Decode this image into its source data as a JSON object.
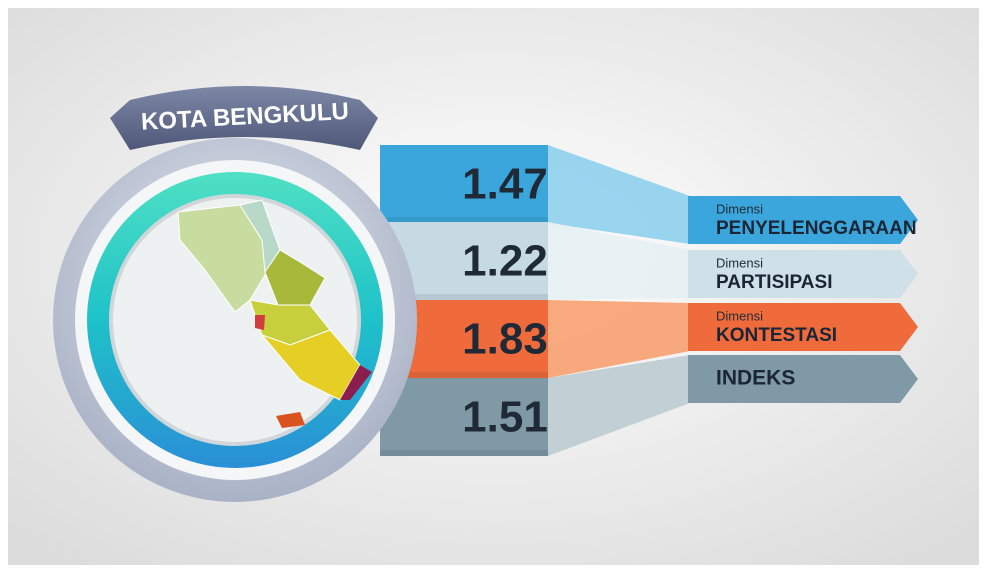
{
  "title": "KOTA BENGKULU",
  "rows": [
    {
      "value": 1.47,
      "prefix": "Dimensi",
      "label": "PENYELENGGARAAN"
    },
    {
      "value": 1.22,
      "prefix": "Dimensi",
      "label": "PARTISIPASI"
    },
    {
      "value": 1.83,
      "prefix": "Dimensi",
      "label": "KONTESTASI"
    },
    {
      "value": 1.51,
      "label": "INDEKS"
    }
  ]
}
